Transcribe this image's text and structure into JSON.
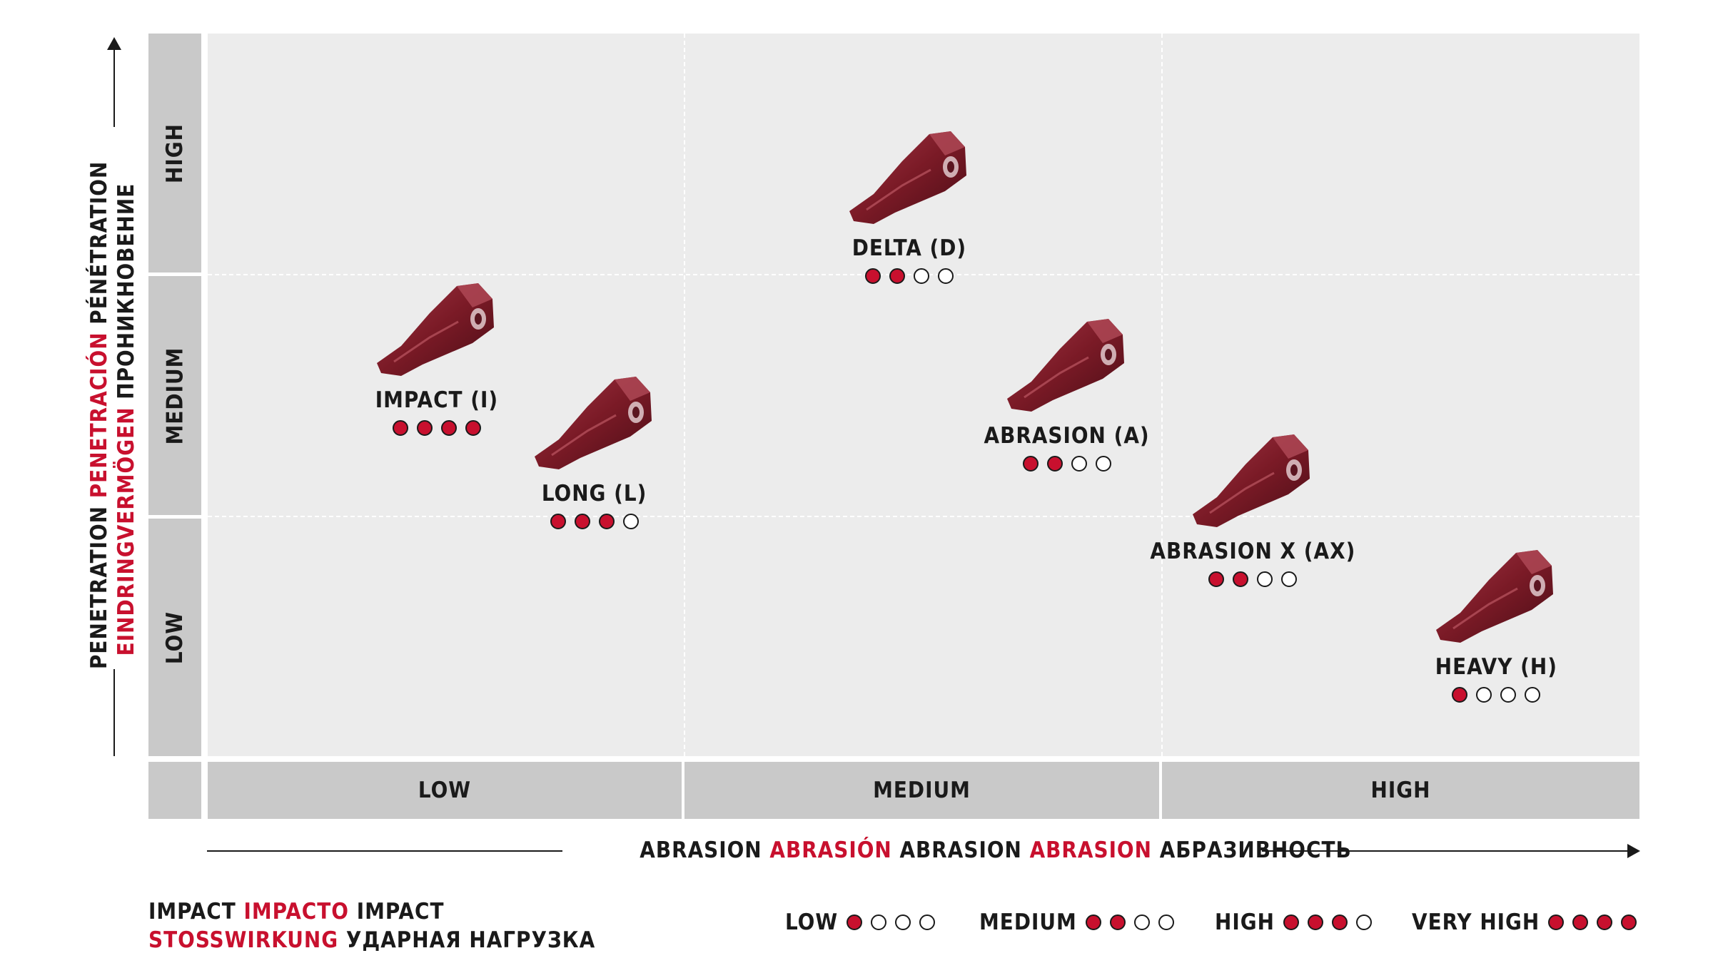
{
  "y_axis": {
    "title_parts": [
      {
        "text": "PENETRATION",
        "color": "#1a1a1a"
      },
      {
        "text": "PENETRACIÓN",
        "color": "#c8102e"
      },
      {
        "text": "PÉNÉTRATION",
        "color": "#1a1a1a"
      }
    ],
    "title_parts_2": [
      {
        "text": "EINDRINGVERMÖGEN",
        "color": "#c8102e"
      },
      {
        "text": "ПРОНИКНОВЕНИЕ",
        "color": "#1a1a1a"
      }
    ],
    "levels": [
      "HIGH",
      "MEDIUM",
      "LOW"
    ]
  },
  "x_axis": {
    "title_parts": [
      {
        "text": "ABRASION",
        "color": "#1a1a1a"
      },
      {
        "text": "ABRASIÓN",
        "color": "#c8102e"
      },
      {
        "text": "ABRASION",
        "color": "#1a1a1a"
      },
      {
        "text": "ABRASION",
        "color": "#c8102e"
      },
      {
        "text": "АБРАЗИВНОСТЬ",
        "color": "#1a1a1a"
      }
    ],
    "levels": [
      "LOW",
      "MEDIUM",
      "HIGH"
    ]
  },
  "teeth": [
    {
      "name": "IMPACT (I)",
      "impact_rating": 4,
      "abrasion": 0.16,
      "penetration": 0.49
    },
    {
      "name": "LONG (L)",
      "impact_rating": 3,
      "abrasion": 0.27,
      "penetration": 0.36
    },
    {
      "name": "DELTA (D)",
      "impact_rating": 2,
      "abrasion": 0.49,
      "penetration": 0.7
    },
    {
      "name": "ABRASION (A)",
      "impact_rating": 2,
      "abrasion": 0.6,
      "penetration": 0.44
    },
    {
      "name": "ABRASION X (AX)",
      "impact_rating": 2,
      "abrasion": 0.73,
      "penetration": 0.28
    },
    {
      "name": "HEAVY (H)",
      "impact_rating": 1,
      "abrasion": 0.9,
      "penetration": 0.12
    }
  ],
  "legend": {
    "title_line1": [
      {
        "text": "IMPACT",
        "color": "#1a1a1a"
      },
      {
        "text": "IMPACTO",
        "color": "#c8102e"
      },
      {
        "text": "IMPACT",
        "color": "#1a1a1a"
      }
    ],
    "title_line2": [
      {
        "text": "STOSSWIRKUNG",
        "color": "#c8102e"
      },
      {
        "text": "УДАРНАЯ НАГРУЗКА",
        "color": "#1a1a1a"
      }
    ],
    "items": [
      {
        "label": "LOW",
        "rating": 1
      },
      {
        "label": "MEDIUM",
        "rating": 2
      },
      {
        "label": "HIGH",
        "rating": 3
      },
      {
        "label": "VERY HIGH",
        "rating": 4
      }
    ]
  },
  "colors": {
    "accent": "#c8102e",
    "band": "#c9c9c9",
    "plot_bg": "#ececec",
    "tooth": "#7a1a26"
  }
}
